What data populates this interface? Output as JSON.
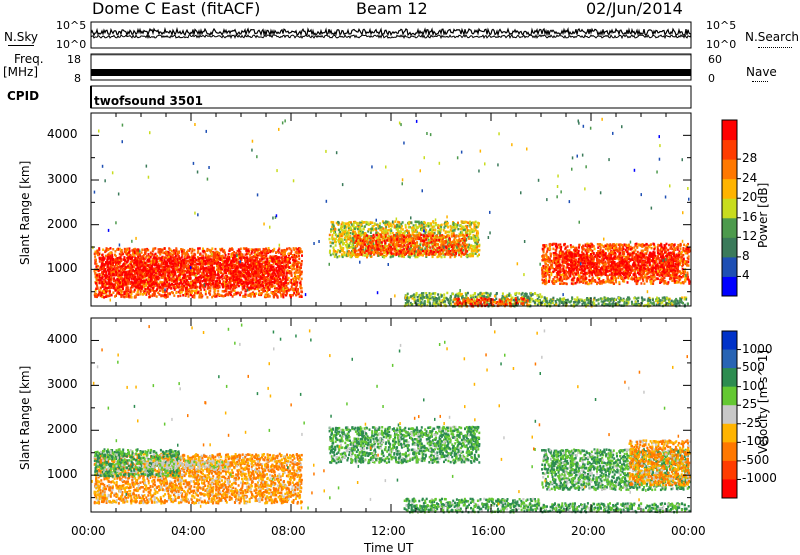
{
  "header": {
    "station": "Dome C East (fitACF)",
    "beam": "Beam 12",
    "date": "02/Jun/2014"
  },
  "strips": {
    "nsky_label": "N.Sky",
    "nsearch_label": "N.Search",
    "nsky_ticks": [
      "10^5",
      "10^0"
    ],
    "nsearch_ticks": [
      "10^5",
      "10^0"
    ],
    "freq_label": "Freq.",
    "freq_unit": "[MHz]",
    "freq_ticks": [
      "18",
      "8"
    ],
    "nave_label": "Nave",
    "nave_ticks": [
      "60",
      "0"
    ],
    "cpid_label": "CPID",
    "cpid_value": "twofsound 3501"
  },
  "chart_data": [
    {
      "type": "heatmap",
      "panel": "power",
      "ylabel": "Slant Range [km]",
      "xlabel": "",
      "x_ticks": [
        "00:00",
        "04:00",
        "08:00",
        "12:00",
        "16:00",
        "20:00",
        "00:00"
      ],
      "xlim": [
        0,
        24
      ],
      "y_ticks": [
        1000,
        2000,
        3000,
        4000
      ],
      "ylim": [
        180,
        4500
      ],
      "colorbar": {
        "label": "Power [dB]",
        "ticks": [
          4,
          8,
          12,
          16,
          20,
          24,
          28
        ],
        "range": [
          0,
          30
        ],
        "colors": [
          "#0000ff",
          "#1e4fb4",
          "#3a7a5a",
          "#4d9a4d",
          "#c8dc1e",
          "#ffb400",
          "#ff7800",
          "#ff3c00",
          "#ff0000"
        ]
      },
      "regions": [
        {
          "t0": 0.1,
          "t1": 8.4,
          "r0": 400,
          "r1": 1500,
          "level": 24
        },
        {
          "t0": 0.3,
          "t1": 7.8,
          "r0": 600,
          "r1": 1300,
          "level": 28
        },
        {
          "t0": 9.5,
          "t1": 15.5,
          "r0": 1300,
          "r1": 2100,
          "level": 16
        },
        {
          "t0": 10.5,
          "t1": 15.0,
          "r0": 1350,
          "r1": 1800,
          "level": 24
        },
        {
          "t0": 12.5,
          "t1": 18.0,
          "r0": 200,
          "r1": 500,
          "level": 12
        },
        {
          "t0": 14.5,
          "t1": 17.5,
          "r0": 200,
          "r1": 380,
          "level": 24
        },
        {
          "t0": 18.0,
          "t1": 23.9,
          "r0": 700,
          "r1": 1600,
          "level": 24
        },
        {
          "t0": 18.5,
          "t1": 23.5,
          "r0": 900,
          "r1": 1400,
          "level": 28
        },
        {
          "t0": 18.0,
          "t1": 23.9,
          "r0": 200,
          "r1": 400,
          "level": 12
        }
      ]
    },
    {
      "type": "heatmap",
      "panel": "velocity",
      "ylabel": "Slant Range [km]",
      "xlabel": "Time UT",
      "x_ticks": [
        "00:00",
        "04:00",
        "08:00",
        "12:00",
        "16:00",
        "20:00",
        "00:00"
      ],
      "xlim": [
        0,
        24
      ],
      "y_ticks": [
        1000,
        2000,
        3000,
        4000
      ],
      "ylim": [
        180,
        4500
      ],
      "colorbar": {
        "label": "Velocity [m s^-1]",
        "ticks": [
          "1000",
          "500",
          "100",
          "25",
          "-25",
          "-100",
          "-500",
          "-1000"
        ],
        "colors": [
          "#0032c8",
          "#2864b4",
          "#2d8c50",
          "#64c832",
          "#c8c8c8",
          "#ffb400",
          "#ff7800",
          "#ff3c00",
          "#ff0000"
        ]
      },
      "regions": [
        {
          "t0": 0.1,
          "t1": 8.4,
          "r0": 400,
          "r1": 1500,
          "level": -100
        },
        {
          "t0": 0.1,
          "t1": 3.5,
          "r0": 1000,
          "r1": 1600,
          "level": 100
        },
        {
          "t0": 2.0,
          "t1": 5.5,
          "r0": 1150,
          "r1": 1350,
          "level": 0
        },
        {
          "t0": 9.5,
          "t1": 15.5,
          "r0": 1300,
          "r1": 2100,
          "level": 100
        },
        {
          "t0": 12.5,
          "t1": 18.0,
          "r0": 200,
          "r1": 500,
          "level": 100
        },
        {
          "t0": 18.0,
          "t1": 23.9,
          "r0": 700,
          "r1": 1600,
          "level": 100
        },
        {
          "t0": 21.5,
          "t1": 23.9,
          "r0": 800,
          "r1": 1800,
          "level": -100
        },
        {
          "t0": 18.0,
          "t1": 23.9,
          "r0": 200,
          "r1": 400,
          "level": 100
        }
      ]
    }
  ]
}
